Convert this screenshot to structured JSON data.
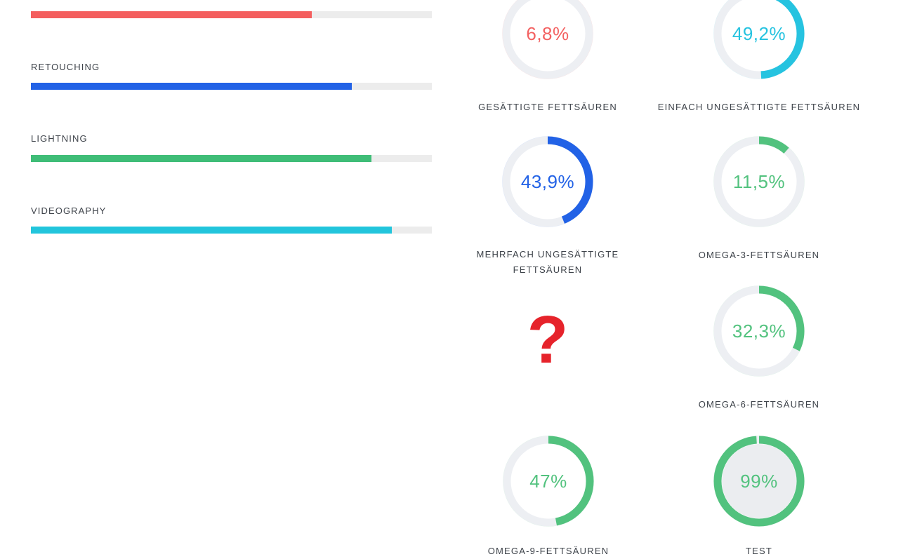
{
  "chart_data": [
    {
      "type": "bar",
      "orientation": "horizontal",
      "unit": "%",
      "categories": [
        "",
        "RETOUCHING",
        "LIGHTNING",
        "VIDEOGRAPHY"
      ],
      "values": [
        70,
        80,
        85,
        90
      ],
      "colors": [
        "#f45e5e",
        "#2262e6",
        "#3fbd77",
        "#22c5dc"
      ],
      "track_color": "#ececec",
      "xlim": [
        0,
        100
      ]
    },
    {
      "type": "donut",
      "ring_color": "#edeff3",
      "items": [
        {
          "label": "GESÄTTIGTE FETTSÄUREN",
          "value": 6.8,
          "display": "6,8%",
          "color": "#f36161"
        },
        {
          "label": "EINFACH UNGESÄTTIGTE FETTSÄUREN",
          "value": 49.2,
          "display": "49,2%",
          "color": "#26c3e0"
        },
        {
          "label": "MEHRFACH UNGESÄTTIGTE FETTSÄUREN",
          "value": 43.9,
          "display": "43,9%",
          "color": "#2262e6"
        },
        {
          "label": "OMEGA-3-FETTSÄUREN",
          "value": 11.5,
          "display": "11,5%",
          "color": "#52c27e"
        },
        {
          "label": "OMEGA-6-FETTSÄUREN",
          "value": 32.3,
          "display": "32,3%",
          "color": "#52c27e"
        },
        {
          "label": "OMEGA-9-FETTSÄUREN",
          "value": 47,
          "display": "47%",
          "color": "#52c27e"
        },
        {
          "label": "TEST",
          "value": 99,
          "display": "99%",
          "color": "#52c27e",
          "center_fill": "#ebedf0"
        }
      ]
    }
  ],
  "question_mark": {
    "glyph": "?",
    "color": "#e6232b"
  }
}
